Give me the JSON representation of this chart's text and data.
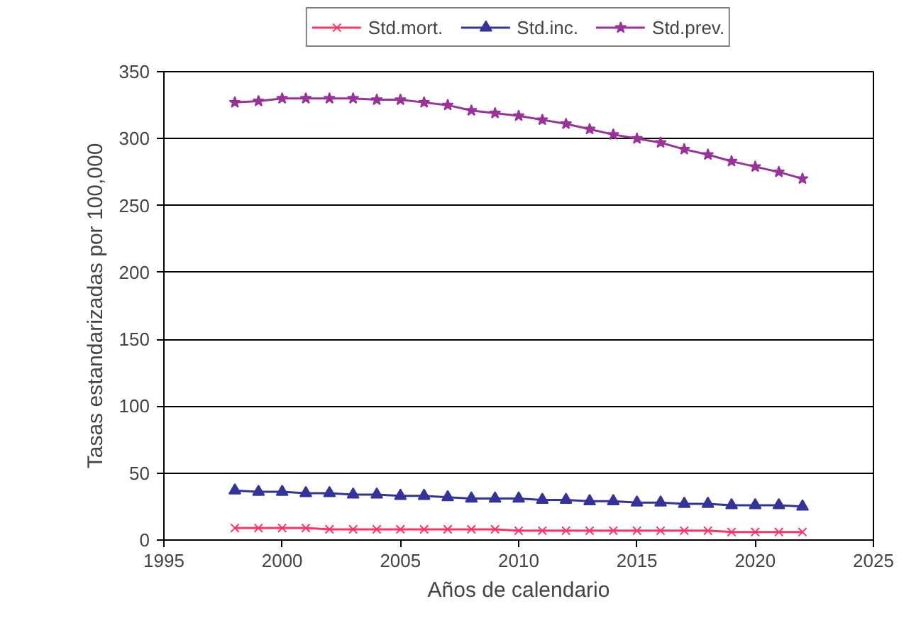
{
  "chart_data": {
    "type": "line",
    "xlabel": "Años de calendario",
    "ylabel": "Tasas estandarizadas por 100,000",
    "x": [
      1998,
      1999,
      2000,
      2001,
      2002,
      2003,
      2004,
      2005,
      2006,
      2007,
      2008,
      2009,
      2010,
      2011,
      2012,
      2013,
      2014,
      2015,
      2016,
      2017,
      2018,
      2019,
      2020,
      2021,
      2022
    ],
    "series": [
      {
        "name": "Std.mort.",
        "color": "#ff3366",
        "marker": "cross",
        "values": [
          9,
          9,
          9,
          9,
          8,
          8,
          8,
          8,
          8,
          8,
          8,
          8,
          7,
          7,
          7,
          7,
          7,
          7,
          7,
          7,
          7,
          6,
          6,
          6,
          6
        ]
      },
      {
        "name": "Std.inc.",
        "color": "#333399",
        "marker": "triangle",
        "values": [
          37,
          36,
          36,
          35,
          35,
          34,
          34,
          33,
          33,
          32,
          31,
          31,
          31,
          30,
          30,
          29,
          29,
          28,
          28,
          27,
          27,
          26,
          26,
          26,
          25
        ]
      },
      {
        "name": "Std.prev.",
        "color": "#993399",
        "marker": "star",
        "values": [
          327,
          328,
          330,
          330,
          330,
          330,
          329,
          329,
          327,
          325,
          321,
          319,
          317,
          314,
          311,
          307,
          303,
          300,
          297,
          292,
          288,
          283,
          279,
          275,
          270
        ]
      }
    ],
    "xlim": [
      1995,
      2025
    ],
    "xticks": [
      1995,
      2000,
      2005,
      2010,
      2015,
      2020,
      2025
    ],
    "ylim": [
      0,
      350
    ],
    "yticks": [
      0,
      50,
      100,
      150,
      200,
      250,
      300,
      350
    ],
    "grid": "y",
    "legend": "top",
    "line_style": "solid"
  }
}
